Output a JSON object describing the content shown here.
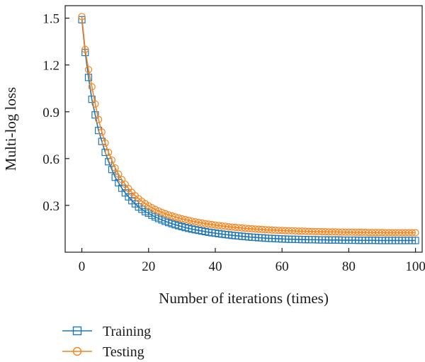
{
  "chart_data": {
    "type": "line",
    "xlabel": "Number of iterations (times)",
    "ylabel": "Multi-log loss",
    "xlim": [
      -5,
      102
    ],
    "ylim": [
      0.0,
      1.58
    ],
    "xticks": [
      0,
      20,
      40,
      60,
      80,
      100
    ],
    "yticks": [
      0.3,
      0.6,
      0.9,
      1.2,
      1.5
    ],
    "xtick_labels": [
      "0",
      "20",
      "40",
      "60",
      "80",
      "100"
    ],
    "ytick_labels": [
      "0.3",
      "0.6",
      "0.9",
      "1.2",
      "1.5"
    ],
    "grid": false,
    "legend_position": "bottom-left",
    "series": [
      {
        "name": "Training",
        "color": "#1f77b4",
        "marker": "square",
        "x": [
          0,
          1,
          2,
          3,
          4,
          5,
          6,
          7,
          8,
          9,
          10,
          11,
          12,
          13,
          14,
          15,
          16,
          17,
          18,
          19,
          20,
          21,
          22,
          23,
          24,
          25,
          26,
          27,
          28,
          29,
          30,
          31,
          32,
          33,
          34,
          35,
          36,
          37,
          38,
          39,
          40,
          41,
          42,
          43,
          44,
          45,
          46,
          47,
          48,
          49,
          50,
          51,
          52,
          53,
          54,
          55,
          56,
          57,
          58,
          59,
          60,
          61,
          62,
          63,
          64,
          65,
          66,
          67,
          68,
          69,
          70,
          71,
          72,
          73,
          74,
          75,
          76,
          77,
          78,
          79,
          80,
          81,
          82,
          83,
          84,
          85,
          86,
          87,
          88,
          89,
          90,
          91,
          92,
          93,
          94,
          95,
          96,
          97,
          98,
          99,
          100
        ],
        "y": [
          1.49,
          1.28,
          1.12,
          0.98,
          0.88,
          0.78,
          0.71,
          0.64,
          0.58,
          0.53,
          0.48,
          0.445,
          0.41,
          0.38,
          0.355,
          0.33,
          0.31,
          0.29,
          0.275,
          0.26,
          0.25,
          0.237,
          0.226,
          0.216,
          0.207,
          0.198,
          0.19,
          0.183,
          0.176,
          0.17,
          0.164,
          0.158,
          0.153,
          0.148,
          0.144,
          0.14,
          0.136,
          0.132,
          0.128,
          0.125,
          0.122,
          0.119,
          0.116,
          0.113,
          0.111,
          0.108,
          0.106,
          0.104,
          0.102,
          0.1,
          0.098,
          0.096,
          0.095,
          0.093,
          0.092,
          0.09,
          0.089,
          0.088,
          0.087,
          0.086,
          0.085,
          0.084,
          0.083,
          0.083,
          0.082,
          0.082,
          0.081,
          0.081,
          0.08,
          0.08,
          0.08,
          0.079,
          0.079,
          0.079,
          0.078,
          0.078,
          0.078,
          0.078,
          0.077,
          0.077,
          0.077,
          0.077,
          0.077,
          0.076,
          0.076,
          0.076,
          0.076,
          0.076,
          0.076,
          0.075,
          0.075,
          0.075,
          0.075,
          0.075,
          0.075,
          0.075,
          0.075,
          0.075,
          0.075,
          0.075,
          0.075
        ]
      },
      {
        "name": "Testing",
        "color": "#f5841f",
        "marker": "circle",
        "x": [
          0,
          1,
          2,
          3,
          4,
          5,
          6,
          7,
          8,
          9,
          10,
          11,
          12,
          13,
          14,
          15,
          16,
          17,
          18,
          19,
          20,
          21,
          22,
          23,
          24,
          25,
          26,
          27,
          28,
          29,
          30,
          31,
          32,
          33,
          34,
          35,
          36,
          37,
          38,
          39,
          40,
          41,
          42,
          43,
          44,
          45,
          46,
          47,
          48,
          49,
          50,
          51,
          52,
          53,
          54,
          55,
          56,
          57,
          58,
          59,
          60,
          61,
          62,
          63,
          64,
          65,
          66,
          67,
          68,
          69,
          70,
          71,
          72,
          73,
          74,
          75,
          76,
          77,
          78,
          79,
          80,
          81,
          82,
          83,
          84,
          85,
          86,
          87,
          88,
          89,
          90,
          91,
          92,
          93,
          94,
          95,
          96,
          97,
          98,
          99,
          100
        ],
        "y": [
          1.51,
          1.3,
          1.17,
          1.06,
          0.95,
          0.85,
          0.77,
          0.7,
          0.64,
          0.59,
          0.54,
          0.5,
          0.465,
          0.435,
          0.408,
          0.383,
          0.362,
          0.343,
          0.326,
          0.311,
          0.297,
          0.285,
          0.274,
          0.264,
          0.255,
          0.247,
          0.239,
          0.232,
          0.226,
          0.22,
          0.214,
          0.209,
          0.204,
          0.199,
          0.195,
          0.191,
          0.187,
          0.183,
          0.18,
          0.177,
          0.174,
          0.171,
          0.168,
          0.166,
          0.163,
          0.161,
          0.159,
          0.157,
          0.155,
          0.153,
          0.151,
          0.15,
          0.148,
          0.147,
          0.146,
          0.144,
          0.143,
          0.142,
          0.141,
          0.14,
          0.139,
          0.138,
          0.137,
          0.137,
          0.136,
          0.135,
          0.135,
          0.134,
          0.133,
          0.133,
          0.132,
          0.132,
          0.131,
          0.131,
          0.13,
          0.13,
          0.13,
          0.129,
          0.129,
          0.128,
          0.128,
          0.128,
          0.127,
          0.127,
          0.127,
          0.127,
          0.126,
          0.126,
          0.126,
          0.126,
          0.126,
          0.125,
          0.125,
          0.125,
          0.125,
          0.125,
          0.125,
          0.125,
          0.125,
          0.125,
          0.125
        ]
      }
    ]
  }
}
